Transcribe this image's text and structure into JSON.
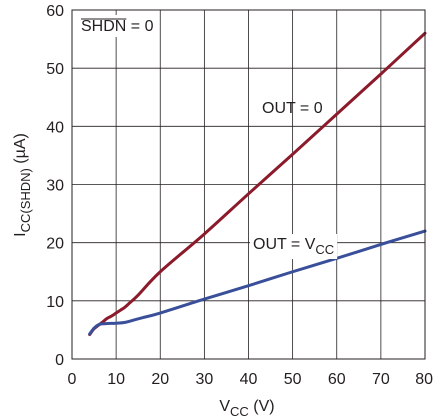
{
  "chart_data": {
    "type": "line",
    "xlabel": {
      "main": "V",
      "sub": "CC",
      "unit": " (V)"
    },
    "ylabel": {
      "main": "I",
      "sub": "CC(SHDN)",
      "unit": " (µA)"
    },
    "xlim": [
      0,
      80
    ],
    "ylim": [
      0,
      60
    ],
    "xticks": [
      0,
      10,
      20,
      30,
      40,
      50,
      60,
      70,
      80
    ],
    "yticks": [
      0,
      10,
      20,
      30,
      40,
      50,
      60
    ],
    "grid": true,
    "legend": "none",
    "colors": {
      "out_zero": "#8b1a2b",
      "out_vcc": "#3a4f9a",
      "grid": "#231f20"
    },
    "annotations": {
      "shdn": {
        "bar_text": "SHDN",
        "rest": " = 0"
      },
      "out_zero": "OUT = 0",
      "out_vcc": {
        "main": "OUT = V",
        "sub": "CC"
      }
    },
    "series": [
      {
        "key": "out_zero",
        "x": [
          4,
          5,
          6,
          7,
          8,
          9,
          10,
          11,
          12,
          13,
          15,
          20,
          30,
          40,
          50,
          60,
          70,
          80
        ],
        "y": [
          4.2,
          5.2,
          5.8,
          6.4,
          7.0,
          7.4,
          7.9,
          8.4,
          8.9,
          9.6,
          11.0,
          15.0,
          21.5,
          28.4,
          35.2,
          42.1,
          49.0,
          56.0
        ]
      },
      {
        "key": "out_vcc",
        "x": [
          4,
          5,
          6,
          7,
          8,
          10,
          12,
          14,
          16,
          20,
          30,
          40,
          50,
          60,
          70,
          80
        ],
        "y": [
          4.3,
          5.3,
          5.9,
          6.05,
          6.1,
          6.15,
          6.3,
          6.7,
          7.1,
          7.9,
          10.3,
          12.6,
          15.0,
          17.3,
          19.7,
          22.0
        ]
      }
    ]
  }
}
